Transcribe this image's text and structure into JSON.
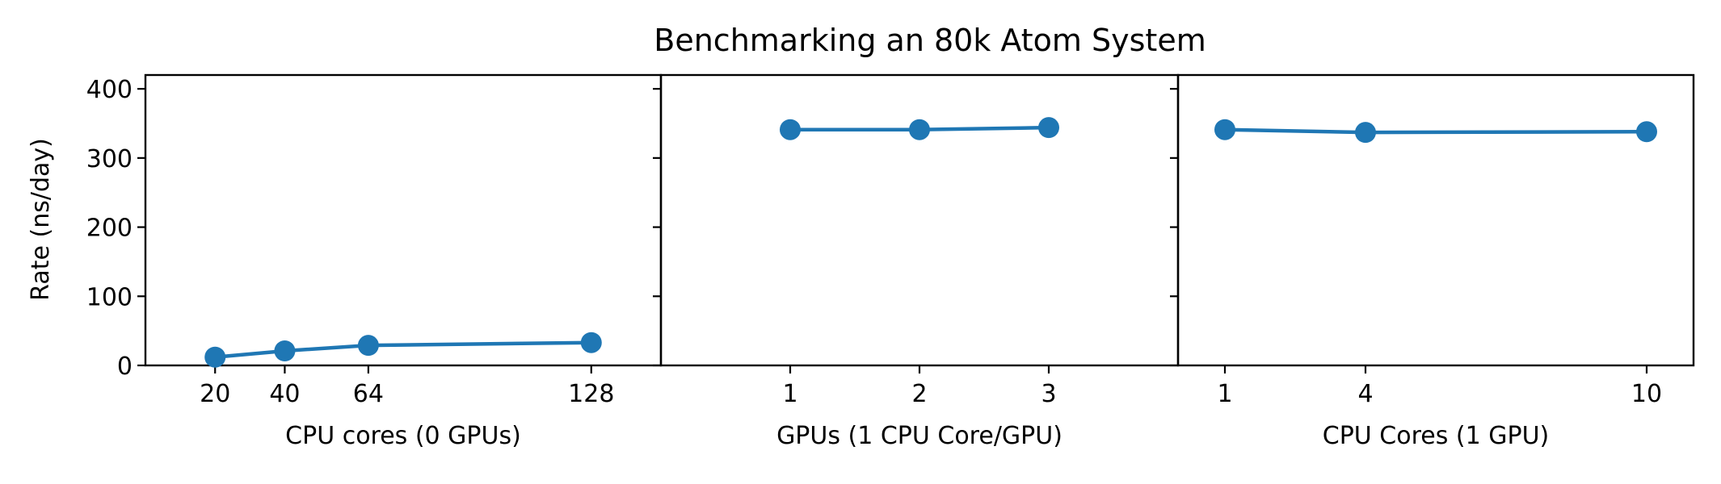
{
  "figure": {
    "title": "Benchmarking an 80k Atom System",
    "ylabel": "Rate (ns/day)",
    "series_color": "#1f77b4"
  },
  "chart_data": [
    {
      "type": "line",
      "xlabel": "CPU cores (0 GPUs)",
      "ylabel": "Rate (ns/day)",
      "x": [
        20,
        40,
        64,
        128
      ],
      "xticks": [
        20,
        40,
        64,
        128
      ],
      "xlim": [
        0,
        148
      ],
      "ylim": [
        0,
        420
      ],
      "yticks": [
        0,
        100,
        200,
        300,
        400
      ],
      "series": [
        {
          "values": [
            12,
            21,
            29,
            33
          ]
        }
      ],
      "grid": false,
      "markers": true
    },
    {
      "type": "line",
      "xlabel": "GPUs (1 CPU Core/GPU)",
      "x": [
        1,
        2,
        3
      ],
      "xticks": [
        1,
        2,
        3
      ],
      "xlim": [
        0,
        4
      ],
      "ylim": [
        0,
        420
      ],
      "series": [
        {
          "values": [
            341,
            341,
            344
          ]
        }
      ],
      "grid": false,
      "markers": true
    },
    {
      "type": "line",
      "xlabel": "CPU Cores (1 GPU)",
      "x": [
        1,
        4,
        10
      ],
      "xticks": [
        1,
        4,
        10
      ],
      "xlim": [
        0,
        11
      ],
      "ylim": [
        0,
        420
      ],
      "series": [
        {
          "values": [
            341,
            337,
            338
          ]
        }
      ],
      "grid": false,
      "markers": true
    }
  ]
}
